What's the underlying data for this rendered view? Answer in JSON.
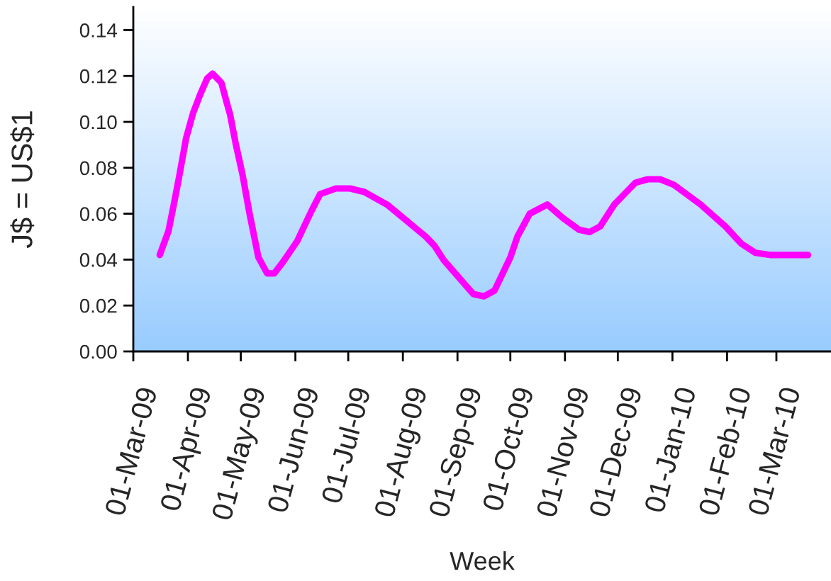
{
  "chart_data": {
    "type": "line",
    "xlabel": "Week",
    "ylabel": "J$ = US$1",
    "x": [
      "2009-03-16",
      "2009-03-21",
      "2009-03-24",
      "2009-03-27",
      "2009-03-31",
      "2009-04-04",
      "2009-04-08",
      "2009-04-12",
      "2009-04-15",
      "2009-04-20",
      "2009-04-23",
      "2009-04-25",
      "2009-04-28",
      "2009-05-02",
      "2009-05-06",
      "2009-05-11",
      "2009-05-16",
      "2009-05-20",
      "2009-05-25",
      "2009-06-02",
      "2009-06-10",
      "2009-06-15",
      "2009-06-24",
      "2009-07-02",
      "2009-07-10",
      "2009-07-23",
      "2009-08-03",
      "2009-08-14",
      "2009-08-19",
      "2009-08-24",
      "2009-09-02",
      "2009-09-10",
      "2009-09-16",
      "2009-09-22",
      "2009-10-01",
      "2009-10-05",
      "2009-10-12",
      "2009-10-22",
      "2009-10-31",
      "2009-11-09",
      "2009-11-15",
      "2009-11-21",
      "2009-11-29",
      "2009-12-11",
      "2009-12-18",
      "2009-12-25",
      "2010-01-02",
      "2010-01-17",
      "2010-01-31",
      "2010-02-09",
      "2010-02-17",
      "2010-02-26",
      "2010-03-19"
    ],
    "series": [
      {
        "color": "#ff00ff",
        "values": [
          0.042,
          0.0525,
          0.064,
          0.076,
          0.093,
          0.104,
          0.112,
          0.119,
          0.121,
          0.117,
          0.1085,
          0.103,
          0.091,
          0.077,
          0.06,
          0.041,
          0.034,
          0.034,
          0.039,
          0.048,
          0.061,
          0.0685,
          0.071,
          0.071,
          0.0695,
          0.064,
          0.057,
          0.05,
          0.046,
          0.04,
          0.032,
          0.025,
          0.024,
          0.0265,
          0.041,
          0.05,
          0.06,
          0.064,
          0.058,
          0.053,
          0.052,
          0.0545,
          0.064,
          0.0735,
          0.075,
          0.075,
          0.0725,
          0.064,
          0.0545,
          0.047,
          0.043,
          0.042,
          0.042
        ]
      }
    ],
    "xlim": [
      "2009-03-01",
      "2010-04-01"
    ],
    "ylim": [
      0,
      0.15
    ],
    "xticks": [
      {
        "value": "2009-03-01",
        "label": "01-Mar-09"
      },
      {
        "value": "2009-04-01",
        "label": "01-Apr-09"
      },
      {
        "value": "2009-05-01",
        "label": "01-May-09"
      },
      {
        "value": "2009-06-01",
        "label": "01-Jun-09"
      },
      {
        "value": "2009-07-01",
        "label": "01-Jul-09"
      },
      {
        "value": "2009-08-01",
        "label": "01-Aug-09"
      },
      {
        "value": "2009-09-01",
        "label": "01-Sep-09"
      },
      {
        "value": "2009-10-01",
        "label": "01-Oct-09"
      },
      {
        "value": "2009-11-01",
        "label": "01-Nov-09"
      },
      {
        "value": "2009-12-01",
        "label": "01-Dec-09"
      },
      {
        "value": "2010-01-01",
        "label": "01-Jan-10"
      },
      {
        "value": "2010-02-01",
        "label": "01-Feb-10"
      },
      {
        "value": "2010-03-01",
        "label": "01-Mar-10"
      }
    ],
    "yticks": [
      {
        "value": 0,
        "label": "0.00"
      },
      {
        "value": 0.02,
        "label": "0.02"
      },
      {
        "value": 0.04,
        "label": "0.04"
      },
      {
        "value": 0.06,
        "label": "0.06"
      },
      {
        "value": 0.08,
        "label": "0.08"
      },
      {
        "value": 0.1,
        "label": "0.10"
      },
      {
        "value": 0.12,
        "label": "0.12"
      },
      {
        "value": 0.14,
        "label": "0.14"
      }
    ],
    "line_style": "solid"
  }
}
